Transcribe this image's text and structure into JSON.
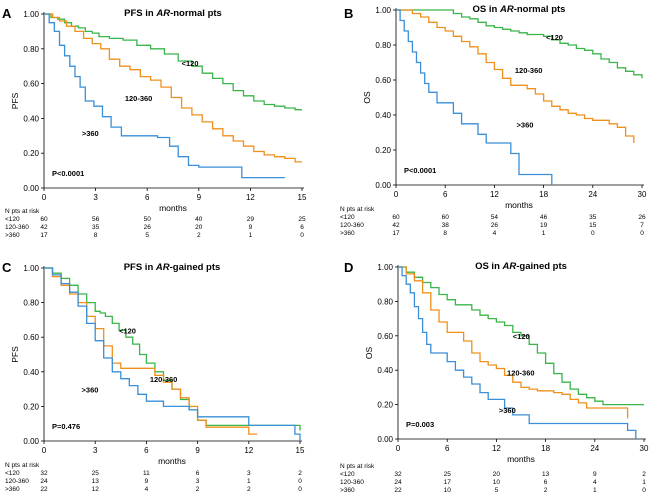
{
  "chart_data": [
    {
      "type": "line",
      "step": true,
      "panel_label": "A",
      "title_pre": "PFS in ",
      "title_em": "AR",
      "title_post": "-normal pts",
      "xlabel": "months",
      "ylabel": "PFS",
      "xlim": [
        0,
        15
      ],
      "ylim": [
        0,
        1
      ],
      "xticks": [
        0,
        3,
        6,
        9,
        12,
        15
      ],
      "yticks": [
        "0.00",
        "0.20",
        "0.40",
        "0.60",
        "0.80",
        "1.00"
      ],
      "pvalue": "P<0.0001",
      "colors": {
        "<120": "#3ab54a",
        "120-360": "#f0901c",
        ">360": "#3a8fd8"
      },
      "series": [
        {
          "name": "<120",
          "label_at": [
            8.0,
            0.7
          ],
          "x": [
            0,
            0.4,
            0.8,
            1.2,
            1.6,
            2.0,
            2.4,
            2.8,
            3.2,
            3.8,
            4.6,
            5.4,
            6.2,
            7.0,
            7.8,
            8.6,
            9.2,
            9.8,
            10.4,
            11.0,
            11.6,
            12.2,
            12.8,
            13.4,
            14.0,
            14.6,
            15.0
          ],
          "y": [
            1.0,
            0.98,
            0.97,
            0.95,
            0.93,
            0.92,
            0.9,
            0.89,
            0.87,
            0.86,
            0.85,
            0.82,
            0.8,
            0.77,
            0.73,
            0.7,
            0.66,
            0.63,
            0.6,
            0.56,
            0.53,
            0.5,
            0.48,
            0.47,
            0.46,
            0.45,
            0.45
          ]
        },
        {
          "name": "120-360",
          "label_at": [
            4.7,
            0.5
          ],
          "x": [
            0,
            0.5,
            0.9,
            1.3,
            1.8,
            2.3,
            2.8,
            3.3,
            3.8,
            4.4,
            5.0,
            5.6,
            6.2,
            6.8,
            7.4,
            8.0,
            8.6,
            9.2,
            9.8,
            10.4,
            11.0,
            11.6,
            12.2,
            12.8,
            13.4,
            14.0,
            14.6,
            15.0
          ],
          "y": [
            1.0,
            0.98,
            0.96,
            0.93,
            0.9,
            0.86,
            0.83,
            0.8,
            0.74,
            0.7,
            0.68,
            0.64,
            0.62,
            0.58,
            0.52,
            0.46,
            0.42,
            0.38,
            0.34,
            0.3,
            0.27,
            0.24,
            0.21,
            0.19,
            0.18,
            0.17,
            0.15,
            0.15
          ]
        },
        {
          "name": ">360",
          "label_at": [
            2.2,
            0.3
          ],
          "x": [
            0,
            0.3,
            0.6,
            0.9,
            1.2,
            1.5,
            1.8,
            2.1,
            2.4,
            2.9,
            3.4,
            3.9,
            4.5,
            5.2,
            5.9,
            6.6,
            7.3,
            7.8,
            8.4,
            9.0,
            9.8,
            10.6,
            11.5,
            12.4,
            13.2,
            14.0
          ],
          "y": [
            1.0,
            0.95,
            0.9,
            0.82,
            0.76,
            0.7,
            0.64,
            0.58,
            0.5,
            0.47,
            0.41,
            0.35,
            0.3,
            0.3,
            0.3,
            0.29,
            0.24,
            0.18,
            0.13,
            0.12,
            0.12,
            0.12,
            0.06,
            0.06,
            0.06,
            0.06
          ]
        }
      ],
      "risk_table": {
        "title": "N pts at risk",
        "rows": [
          {
            "group": "<120",
            "counts": [
              "60",
              "56",
              "50",
              "40",
              "29",
              "25"
            ]
          },
          {
            "group": "120-360",
            "counts": [
              "42",
              "35",
              "26",
              "20",
              "9",
              "6"
            ]
          },
          {
            "group": ">360",
            "counts": [
              "17",
              "8",
              "5",
              "2",
              "1",
              "0"
            ]
          }
        ]
      }
    },
    {
      "type": "line",
      "step": true,
      "panel_label": "B",
      "title_pre": "OS in ",
      "title_em": "AR",
      "title_post": "-normal pts",
      "xlabel": "months",
      "ylabel": "OS",
      "xlim": [
        0,
        30
      ],
      "ylim": [
        0,
        1
      ],
      "xticks": [
        0,
        6,
        12,
        18,
        24,
        30
      ],
      "yticks": [
        "0.00",
        "0.20",
        "0.40",
        "0.60",
        "0.80",
        "1.00"
      ],
      "pvalue": "P<0.0001",
      "colors": {
        "<120": "#3ab54a",
        "120-360": "#f0901c",
        ">360": "#3a8fd8"
      },
      "series": [
        {
          "name": "<120",
          "label_at": [
            18.3,
            0.83
          ],
          "x": [
            0,
            6,
            7,
            8,
            9,
            10,
            11,
            12,
            13,
            14,
            15,
            16,
            17,
            18,
            19,
            20,
            21,
            22,
            23,
            24,
            25,
            26,
            27,
            28,
            29,
            30
          ],
          "y": [
            1.0,
            1.0,
            0.98,
            0.96,
            0.95,
            0.93,
            0.91,
            0.9,
            0.89,
            0.88,
            0.87,
            0.86,
            0.86,
            0.85,
            0.83,
            0.81,
            0.8,
            0.78,
            0.77,
            0.75,
            0.72,
            0.7,
            0.67,
            0.65,
            0.63,
            0.61
          ]
        },
        {
          "name": "120-360",
          "label_at": [
            14.5,
            0.64
          ],
          "x": [
            0,
            1,
            2,
            3,
            4,
            5,
            6,
            7,
            8,
            9,
            10,
            11,
            12,
            13,
            14,
            15,
            16,
            17,
            18,
            19,
            20,
            21,
            22,
            23,
            24,
            25,
            26,
            27,
            28,
            29
          ],
          "y": [
            1.0,
            1.0,
            0.98,
            0.96,
            0.93,
            0.9,
            0.88,
            0.85,
            0.82,
            0.79,
            0.75,
            0.7,
            0.66,
            0.61,
            0.57,
            0.57,
            0.55,
            0.52,
            0.48,
            0.45,
            0.43,
            0.41,
            0.4,
            0.38,
            0.37,
            0.37,
            0.35,
            0.33,
            0.28,
            0.24
          ]
        },
        {
          "name": ">360",
          "label_at": [
            14.7,
            0.33
          ],
          "x": [
            0,
            0.5,
            1,
            1.5,
            2,
            2.5,
            3,
            3.5,
            4,
            5,
            6,
            7,
            8,
            9,
            10,
            11,
            12,
            13,
            14,
            15,
            16,
            17,
            19
          ],
          "y": [
            1.0,
            0.94,
            0.88,
            0.82,
            0.76,
            0.7,
            0.64,
            0.58,
            0.53,
            0.47,
            0.47,
            0.41,
            0.35,
            0.35,
            0.29,
            0.24,
            0.24,
            0.24,
            0.18,
            0.06,
            0.06,
            0.06,
            0.0
          ]
        }
      ],
      "risk_table": {
        "title": "N pts at risk",
        "rows": [
          {
            "group": "<120",
            "counts": [
              "60",
              "60",
              "54",
              "46",
              "35",
              "26"
            ]
          },
          {
            "group": "120-360",
            "counts": [
              "42",
              "38",
              "26",
              "19",
              "15",
              "7"
            ]
          },
          {
            "group": ">360",
            "counts": [
              "17",
              "8",
              "4",
              "1",
              "0",
              "0"
            ]
          }
        ]
      }
    },
    {
      "type": "line",
      "step": true,
      "panel_label": "C",
      "title_pre": "PFS in ",
      "title_em": "AR",
      "title_post": "-gained pts",
      "xlabel": "months",
      "ylabel": "PFS",
      "xlim": [
        0,
        15
      ],
      "ylim": [
        0,
        1
      ],
      "xticks": [
        0,
        3,
        6,
        9,
        12,
        15
      ],
      "yticks": [
        "0.00",
        "0.20",
        "0.40",
        "0.60",
        "0.80",
        "1.00"
      ],
      "pvalue": "P=0.476",
      "colors": {
        "<120": "#3ab54a",
        "120-360": "#f0901c",
        ">360": "#3a8fd8"
      },
      "series": [
        {
          "name": "<120",
          "label_at": [
            4.4,
            0.62
          ],
          "x": [
            0,
            0.5,
            1.0,
            1.5,
            2.0,
            2.5,
            3.0,
            3.3,
            3.6,
            4.0,
            4.4,
            4.8,
            5.2,
            5.6,
            6.0,
            6.5,
            7.0,
            7.5,
            8.0,
            8.5,
            9.0,
            9.5,
            10.0,
            11.0,
            12.0,
            13.0,
            14.0,
            15.0
          ],
          "y": [
            1.0,
            0.97,
            0.94,
            0.9,
            0.85,
            0.8,
            0.75,
            0.74,
            0.72,
            0.68,
            0.64,
            0.6,
            0.56,
            0.5,
            0.45,
            0.4,
            0.35,
            0.3,
            0.24,
            0.18,
            0.12,
            0.09,
            0.09,
            0.09,
            0.09,
            0.09,
            0.09,
            0.06
          ]
        },
        {
          "name": "120-360",
          "label_at": [
            6.2,
            0.34
          ],
          "x": [
            0,
            0.5,
            1.0,
            1.5,
            2.0,
            2.5,
            3.0,
            3.5,
            4.0,
            4.5,
            5.0,
            5.5,
            6.0,
            6.5,
            7.0,
            7.5,
            8.0,
            8.5,
            9.0,
            9.5,
            10.0,
            11.0,
            12.0,
            12.5
          ],
          "y": [
            1.0,
            0.95,
            0.9,
            0.85,
            0.8,
            0.72,
            0.65,
            0.55,
            0.45,
            0.42,
            0.42,
            0.42,
            0.42,
            0.38,
            0.34,
            0.3,
            0.25,
            0.2,
            0.12,
            0.08,
            0.08,
            0.08,
            0.04,
            0.04
          ]
        },
        {
          "name": ">360",
          "label_at": [
            2.2,
            0.28
          ],
          "x": [
            0,
            0.5,
            1.0,
            1.5,
            2.0,
            2.5,
            3.0,
            3.5,
            4.0,
            4.5,
            5.0,
            5.5,
            6.0,
            7.0,
            8.0,
            8.5,
            9.0,
            10.0,
            11.0,
            12.0,
            13.0,
            14.0,
            14.7,
            15.0
          ],
          "y": [
            1.0,
            0.96,
            0.91,
            0.86,
            0.78,
            0.68,
            0.58,
            0.48,
            0.4,
            0.36,
            0.32,
            0.27,
            0.23,
            0.2,
            0.2,
            0.18,
            0.14,
            0.14,
            0.14,
            0.09,
            0.09,
            0.09,
            0.04,
            0.0
          ]
        }
      ],
      "risk_table": {
        "title": "N pts at risk",
        "rows": [
          {
            "group": "<120",
            "counts": [
              "32",
              "25",
              "11",
              "6",
              "3",
              "2"
            ]
          },
          {
            "group": "120-360",
            "counts": [
              "24",
              "13",
              "9",
              "3",
              "1",
              "0"
            ]
          },
          {
            "group": ">360",
            "counts": [
              "22",
              "12",
              "4",
              "2",
              "2",
              "0"
            ]
          }
        ]
      }
    },
    {
      "type": "line",
      "step": true,
      "panel_label": "D",
      "title_pre": "OS in ",
      "title_em": "AR",
      "title_post": "-gained pts",
      "xlabel": "months",
      "ylabel": "OS",
      "xlim": [
        0,
        30
      ],
      "ylim": [
        0,
        1
      ],
      "xticks": [
        0,
        6,
        12,
        18,
        24,
        30
      ],
      "yticks": [
        "0.00",
        "0.20",
        "0.40",
        "0.60",
        "0.80",
        "1.00"
      ],
      "pvalue": "P=0.003",
      "colors": {
        "<120": "#3ab54a",
        "120-360": "#f0901c",
        ">360": "#3a8fd8"
      },
      "series": [
        {
          "name": "<120",
          "label_at": [
            14.0,
            0.58
          ],
          "x": [
            0,
            1,
            2,
            3,
            4,
            5,
            6,
            7,
            8,
            9,
            10,
            11,
            12,
            13,
            14,
            15,
            16,
            17,
            18,
            19,
            20,
            21,
            22,
            23,
            24,
            25,
            26,
            27,
            28,
            29,
            30
          ],
          "y": [
            1.0,
            0.97,
            0.94,
            0.91,
            0.88,
            0.84,
            0.81,
            0.78,
            0.78,
            0.75,
            0.72,
            0.7,
            0.68,
            0.66,
            0.62,
            0.6,
            0.55,
            0.5,
            0.44,
            0.38,
            0.33,
            0.29,
            0.26,
            0.24,
            0.22,
            0.2,
            0.2,
            0.2,
            0.2,
            0.2,
            0.2
          ]
        },
        {
          "name": "120-360",
          "label_at": [
            13.3,
            0.37
          ],
          "x": [
            0,
            1,
            2,
            3,
            4,
            5,
            6,
            7,
            8,
            9,
            10,
            11,
            12,
            13,
            14,
            15,
            16,
            17,
            18,
            19,
            20,
            21,
            22,
            23,
            24,
            25,
            26,
            27,
            28
          ],
          "y": [
            1.0,
            0.96,
            0.92,
            0.85,
            0.75,
            0.68,
            0.62,
            0.62,
            0.57,
            0.5,
            0.45,
            0.43,
            0.41,
            0.37,
            0.33,
            0.3,
            0.29,
            0.28,
            0.28,
            0.27,
            0.26,
            0.23,
            0.21,
            0.18,
            0.18,
            0.18,
            0.18,
            0.18,
            0.12
          ]
        },
        {
          "name": ">360",
          "label_at": [
            12.3,
            0.15
          ],
          "x": [
            0,
            0.5,
            1,
            1.5,
            2,
            2.5,
            3,
            3.5,
            4,
            5,
            6,
            7,
            8,
            9,
            10,
            11,
            12,
            13,
            14,
            15,
            16,
            17,
            18,
            19,
            20,
            22,
            24,
            26,
            28,
            29
          ],
          "y": [
            1.0,
            0.95,
            0.9,
            0.85,
            0.77,
            0.7,
            0.62,
            0.55,
            0.5,
            0.5,
            0.45,
            0.4,
            0.36,
            0.32,
            0.27,
            0.23,
            0.23,
            0.18,
            0.14,
            0.14,
            0.09,
            0.09,
            0.09,
            0.09,
            0.09,
            0.09,
            0.09,
            0.09,
            0.05,
            0.0
          ]
        }
      ],
      "risk_table": {
        "title": "N pts at risk",
        "rows": [
          {
            "group": "<120",
            "counts": [
              "32",
              "25",
              "20",
              "13",
              "9",
              "2"
            ]
          },
          {
            "group": "120-360",
            "counts": [
              "24",
              "17",
              "10",
              "6",
              "4",
              "1"
            ]
          },
          {
            "group": ">360",
            "counts": [
              "22",
              "10",
              "5",
              "2",
              "1",
              "0"
            ]
          }
        ]
      }
    }
  ]
}
